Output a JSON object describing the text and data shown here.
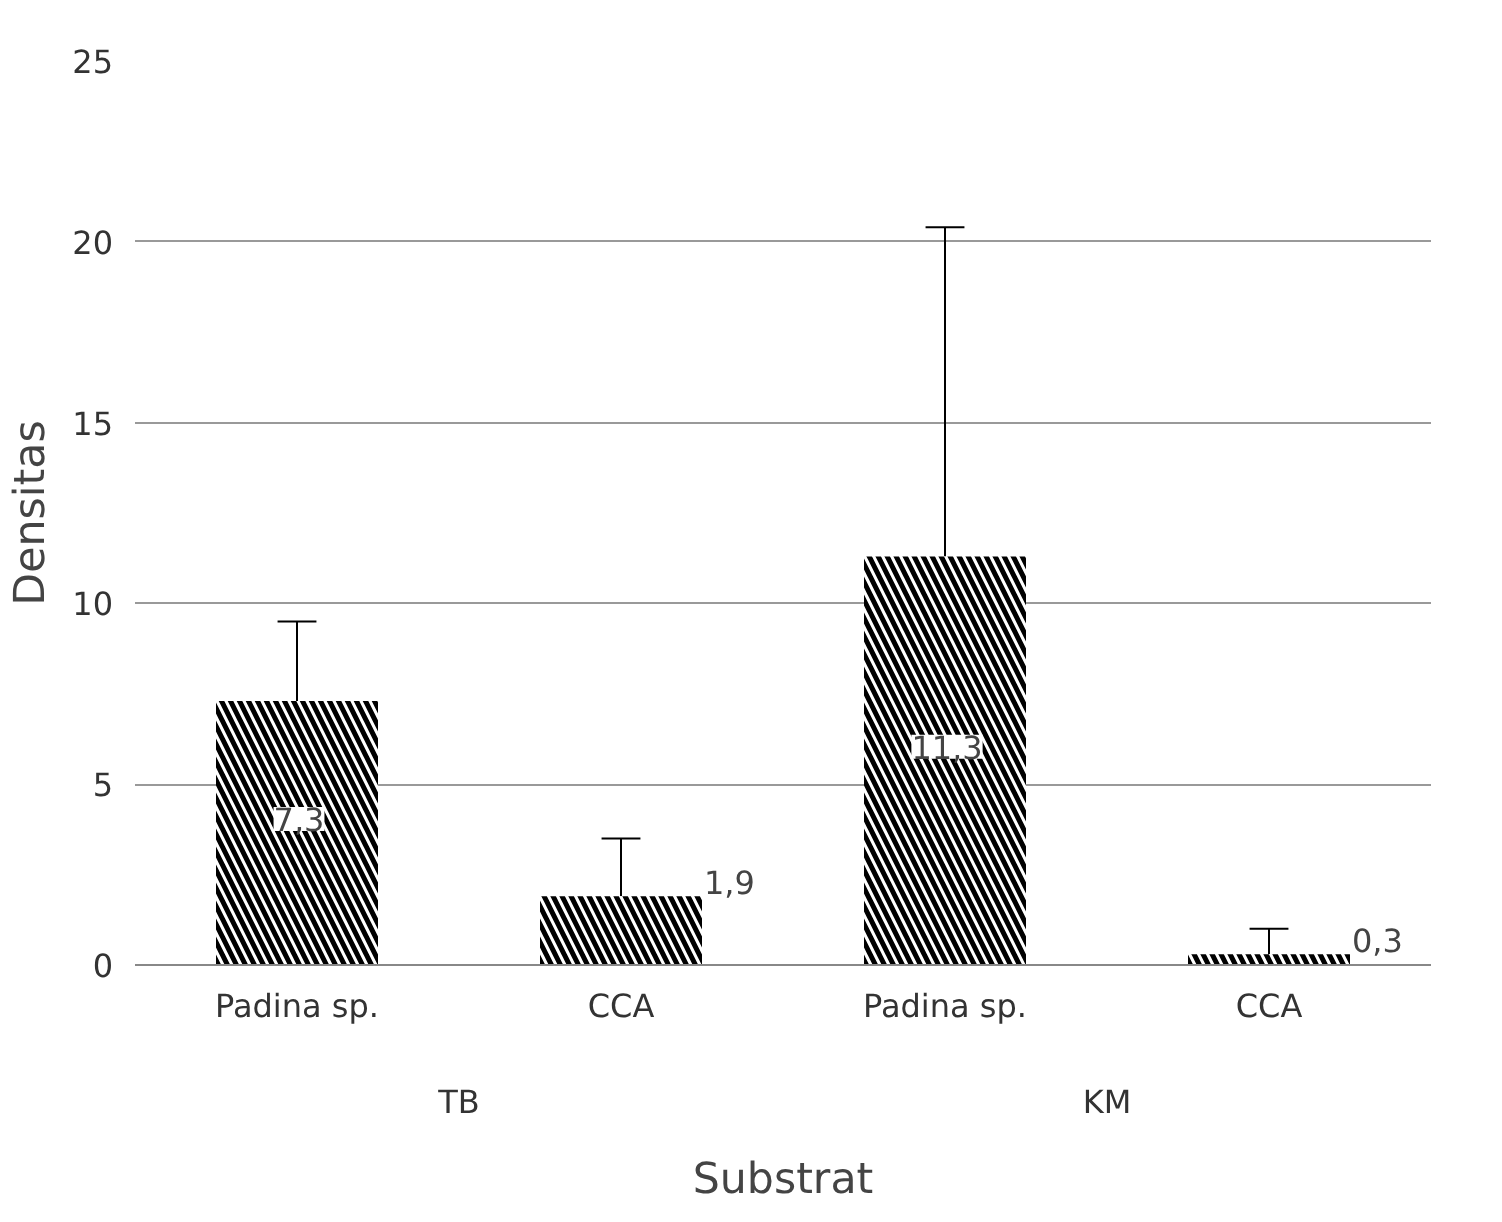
{
  "chart_data": {
    "type": "bar",
    "xlabel": "Substrat",
    "ylabel": "Densitas",
    "categories": [
      "Padina sp.",
      "CCA",
      "Padina sp.",
      "CCA"
    ],
    "values": [
      7.3,
      1.9,
      11.3,
      0.3
    ],
    "value_labels": [
      "7,3",
      "1,9",
      "11,3",
      "0,3"
    ],
    "errors": [
      [
        7.3,
        9.5
      ],
      [
        1.9,
        3.5
      ],
      [
        11.3,
        20.4
      ],
      [
        0.3,
        1.0
      ]
    ],
    "color": "#000000",
    "annotations": [
      "TB",
      "KM"
    ],
    "ylim": [
      0,
      25
    ],
    "yticks": [
      0,
      5,
      10,
      15,
      20,
      25
    ],
    "grid": "y"
  }
}
